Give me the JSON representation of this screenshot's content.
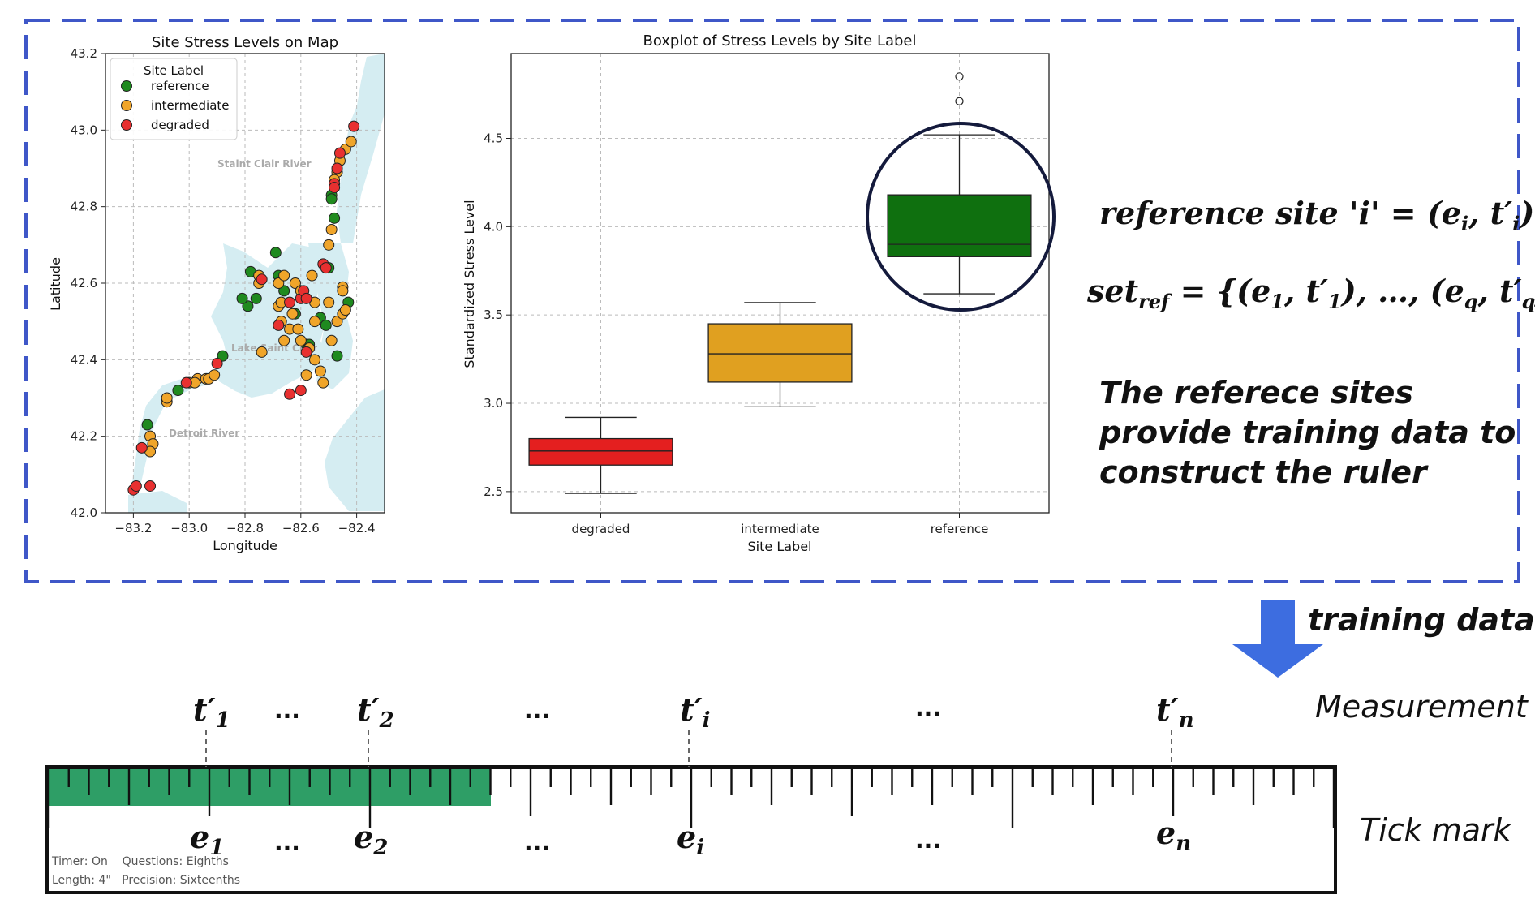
{
  "map_chart": {
    "title": "Site Stress Levels on Map",
    "xlabel": "Longitude",
    "ylabel": "Latitude",
    "x_ticks": [
      "−83.2",
      "−83.0",
      "−82.8",
      "−82.6",
      "−82.4"
    ],
    "y_ticks": [
      "42.0",
      "42.2",
      "42.4",
      "42.6",
      "42.8",
      "43.0",
      "43.2"
    ],
    "legend_title": "Site Label",
    "legend_items": [
      {
        "label": "reference",
        "color": "#1f8a1f"
      },
      {
        "label": "intermediate",
        "color": "#f0a52a"
      },
      {
        "label": "degraded",
        "color": "#e83030"
      }
    ],
    "water_labels": [
      "Staint Clair River",
      "Lake Saint Clair",
      "Detroit River"
    ],
    "water_color": "#d5edf2"
  },
  "chart_data": [
    {
      "type": "scatter",
      "xlim": [
        -83.3,
        -82.3
      ],
      "ylim": [
        42.0,
        43.2
      ],
      "series": [
        {
          "name": "reference",
          "color": "#1f8a1f",
          "points": [
            [
              -83.15,
              42.23
            ],
            [
              -83.04,
              42.32
            ],
            [
              -82.88,
              42.41
            ],
            [
              -82.79,
              42.54
            ],
            [
              -82.76,
              42.56
            ],
            [
              -82.81,
              42.56
            ],
            [
              -82.69,
              42.68
            ],
            [
              -82.78,
              42.63
            ],
            [
              -82.68,
              42.62
            ],
            [
              -82.66,
              42.58
            ],
            [
              -82.62,
              42.52
            ],
            [
              -82.58,
              42.44
            ],
            [
              -82.57,
              42.44
            ],
            [
              -82.53,
              42.51
            ],
            [
              -82.51,
              42.49
            ],
            [
              -82.47,
              42.41
            ],
            [
              -82.43,
              42.55
            ],
            [
              -82.5,
              42.64
            ],
            [
              -82.48,
              42.77
            ],
            [
              -82.49,
              42.83
            ],
            [
              -82.49,
              42.82
            ]
          ]
        },
        {
          "name": "intermediate",
          "color": "#f0a52a",
          "points": [
            [
              -83.14,
              42.2
            ],
            [
              -83.13,
              42.18
            ],
            [
              -83.14,
              42.16
            ],
            [
              -83.08,
              42.29
            ],
            [
              -83.08,
              42.3
            ],
            [
              -83.0,
              42.34
            ],
            [
              -82.97,
              42.35
            ],
            [
              -82.98,
              42.34
            ],
            [
              -82.94,
              42.35
            ],
            [
              -82.93,
              42.35
            ],
            [
              -82.91,
              42.36
            ],
            [
              -82.75,
              42.62
            ],
            [
              -82.75,
              42.6
            ],
            [
              -82.74,
              42.42
            ],
            [
              -82.68,
              42.6
            ],
            [
              -82.66,
              42.62
            ],
            [
              -82.68,
              42.54
            ],
            [
              -82.67,
              42.55
            ],
            [
              -82.66,
              42.45
            ],
            [
              -82.67,
              42.5
            ],
            [
              -82.64,
              42.48
            ],
            [
              -82.62,
              42.6
            ],
            [
              -82.6,
              42.58
            ],
            [
              -82.6,
              42.45
            ],
            [
              -82.56,
              42.62
            ],
            [
              -82.55,
              42.55
            ],
            [
              -82.55,
              42.5
            ],
            [
              -82.55,
              42.4
            ],
            [
              -82.53,
              42.37
            ],
            [
              -82.52,
              42.34
            ],
            [
              -82.5,
              42.55
            ],
            [
              -82.49,
              42.45
            ],
            [
              -82.47,
              42.5
            ],
            [
              -82.45,
              42.59
            ],
            [
              -82.45,
              42.58
            ],
            [
              -82.45,
              42.52
            ],
            [
              -82.44,
              42.53
            ],
            [
              -82.5,
              42.7
            ],
            [
              -82.49,
              42.74
            ],
            [
              -82.47,
              42.89
            ],
            [
              -82.46,
              42.92
            ],
            [
              -82.44,
              42.95
            ],
            [
              -82.42,
              42.97
            ],
            [
              -82.48,
              42.87
            ],
            [
              -82.61,
              42.48
            ],
            [
              -82.57,
              42.43
            ],
            [
              -82.58,
              42.36
            ],
            [
              -82.63,
              42.52
            ]
          ]
        },
        {
          "name": "degraded",
          "color": "#e83030",
          "points": [
            [
              -83.2,
              42.06
            ],
            [
              -83.19,
              42.07
            ],
            [
              -83.17,
              42.17
            ],
            [
              -83.14,
              42.07
            ],
            [
              -83.01,
              42.34
            ],
            [
              -82.9,
              42.39
            ],
            [
              -82.74,
              42.61
            ],
            [
              -82.68,
              42.49
            ],
            [
              -82.64,
              42.31
            ],
            [
              -82.6,
              42.32
            ],
            [
              -82.6,
              42.56
            ],
            [
              -82.59,
              42.58
            ],
            [
              -82.58,
              42.56
            ],
            [
              -82.52,
              42.65
            ],
            [
              -82.51,
              42.64
            ],
            [
              -82.48,
              42.86
            ],
            [
              -82.47,
              42.9
            ],
            [
              -82.46,
              42.94
            ],
            [
              -82.41,
              43.01
            ],
            [
              -82.58,
              42.42
            ],
            [
              -82.48,
              42.85
            ],
            [
              -82.64,
              42.55
            ]
          ]
        }
      ]
    },
    {
      "type": "box",
      "title": "Boxplot of Stress Levels by Site Label",
      "xlabel": "Site Label",
      "ylabel": "Standardized Stress Level",
      "categories": [
        "degraded",
        "intermediate",
        "reference"
      ],
      "ylim": [
        2.38,
        4.98
      ],
      "y_ticks": [
        "2.5",
        "3.0",
        "3.5",
        "4.0",
        "4.5"
      ],
      "boxes": [
        {
          "label": "degraded",
          "color": "#e41f1f",
          "min": 2.49,
          "q1": 2.65,
          "median": 2.73,
          "q3": 2.8,
          "max": 2.92,
          "outliers": []
        },
        {
          "label": "intermediate",
          "color": "#e0a020",
          "min": 2.98,
          "q1": 3.12,
          "median": 3.28,
          "q3": 3.45,
          "max": 3.57,
          "outliers": []
        },
        {
          "label": "reference",
          "color": "#0f700f",
          "min": 3.62,
          "q1": 3.83,
          "median": 3.9,
          "q3": 4.18,
          "max": 4.52,
          "outliers": [
            4.71,
            4.85
          ]
        }
      ]
    }
  ],
  "equations": {
    "ref_site_lhs": "reference site 'i' = (e",
    "ref_site_rhs": "i",
    "set_ref_label": "set",
    "set_ref_sub": "ref"
  },
  "caption": {
    "line1": "The referece sites",
    "line2": "provide training data to",
    "line3": "construct the ruler"
  },
  "arrow": {
    "label": "training data",
    "color": "#3d6de0"
  },
  "ruler": {
    "measurement_label": "Measurement",
    "tick_mark_label": "Tick mark",
    "dots": "...",
    "fill_color": "#2e9e66",
    "info_line1": "Timer: On    Questions: Eighths",
    "info_line2": "Length: 4\"   Precision: Sixteenths"
  }
}
